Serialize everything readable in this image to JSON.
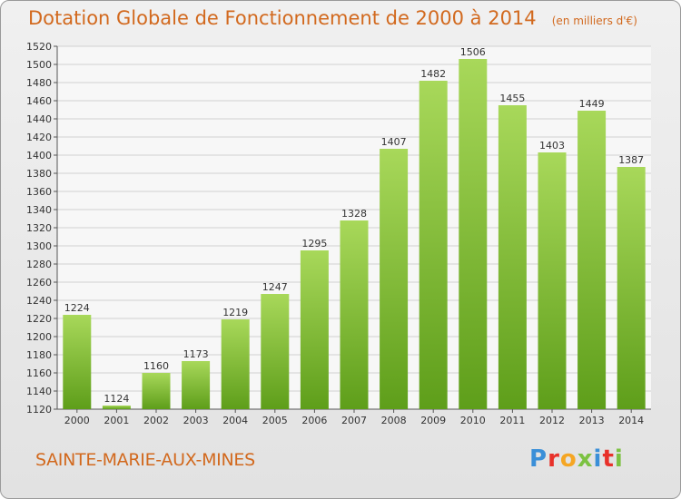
{
  "header": {
    "title": "Dotation Globale de Fonctionnement de 2000 à 2014",
    "subtitle": "(en milliers d'€)"
  },
  "footer": {
    "commune": "SAINTE-MARIE-AUX-MINES",
    "logo": "Proxiti",
    "logo_colors": [
      "#3a8fd8",
      "#e8312a",
      "#f5a623",
      "#7cc242",
      "#3a8fd8",
      "#e8312a",
      "#7cc242"
    ]
  },
  "chart_data": {
    "type": "bar",
    "categories": [
      "2000",
      "2001",
      "2002",
      "2003",
      "2004",
      "2005",
      "2006",
      "2007",
      "2008",
      "2009",
      "2010",
      "2011",
      "2012",
      "2013",
      "2014"
    ],
    "values": [
      1224,
      1124,
      1160,
      1173,
      1219,
      1247,
      1295,
      1328,
      1407,
      1482,
      1506,
      1455,
      1403,
      1449,
      1387
    ],
    "ylim": [
      1120,
      1520
    ],
    "yticks": [
      1120,
      1140,
      1160,
      1180,
      1200,
      1220,
      1240,
      1260,
      1280,
      1300,
      1320,
      1340,
      1360,
      1380,
      1400,
      1420,
      1440,
      1460,
      1480,
      1500,
      1520
    ],
    "grid": true,
    "legend": "none",
    "bar_color_top": "#a8d85a",
    "bar_color_bottom": "#5e9e1a"
  }
}
